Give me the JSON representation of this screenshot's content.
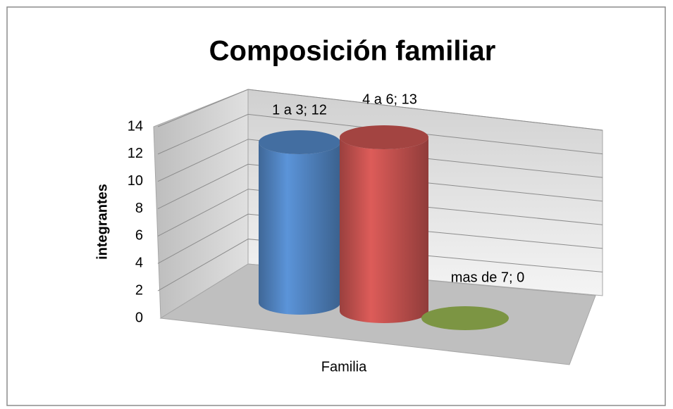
{
  "chart_data": {
    "type": "cylinder",
    "title": "Composición familiar",
    "y_label": "integrantes",
    "x_label": "Familia",
    "categories": [
      "Familia"
    ],
    "series": [
      {
        "color": "#4f81bd",
        "values": [
          12
        ],
        "value_labels": [
          "1 a 3; 12"
        ]
      },
      {
        "color": "#c0504d",
        "values": [
          13
        ],
        "value_labels": [
          "4 a 6; 13"
        ]
      },
      {
        "color": "#8aa64a",
        "values": [
          0
        ],
        "value_labels": [
          "mas de 7; 0"
        ]
      }
    ],
    "ylim": [
      0,
      14
    ],
    "yticks": [
      0,
      2,
      4,
      6,
      8,
      10,
      12,
      14
    ],
    "grid": true
  }
}
